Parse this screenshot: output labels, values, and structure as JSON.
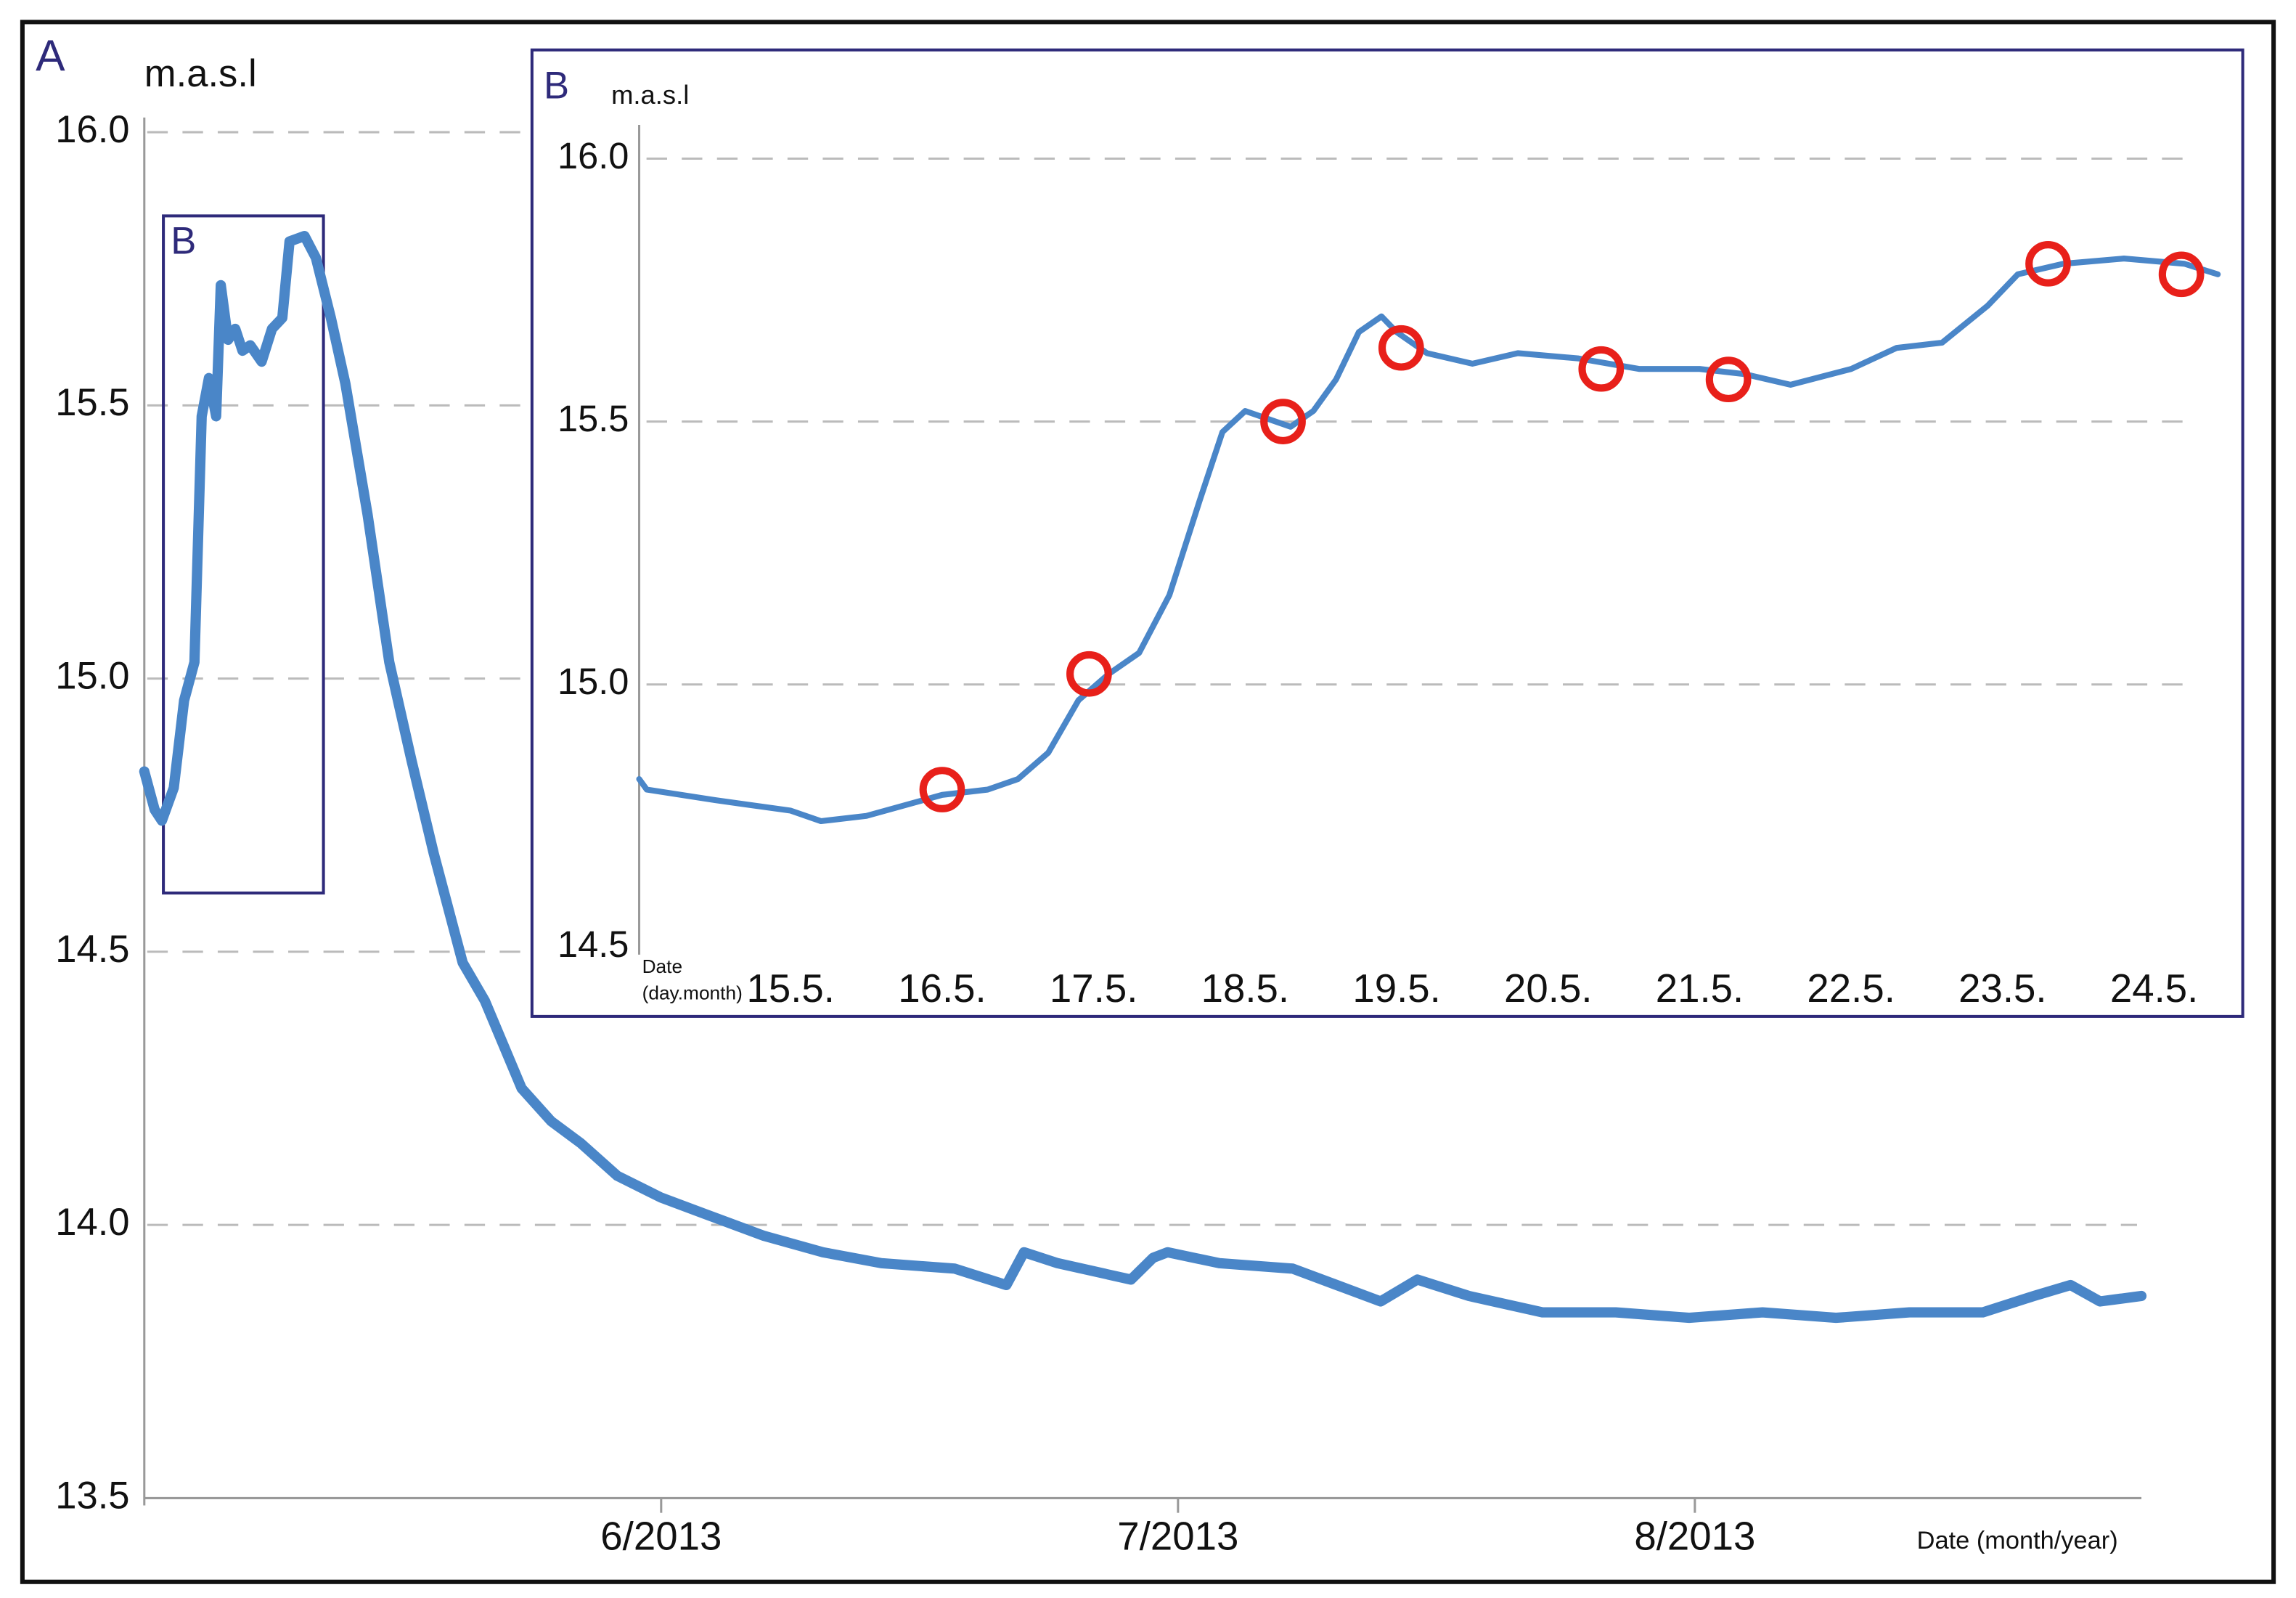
{
  "chart_data": [
    {
      "type": "line",
      "panel_label": "A",
      "y_label": "m.a.s.l",
      "x_label": "Date (month/year)",
      "zoom_label": "B",
      "ylim": [
        13.5,
        16.0
      ],
      "yticks": [
        13.5,
        {
          "value": 14,
          "label": "14.0"
        },
        14.5,
        {
          "value": 15,
          "label": "15.0"
        },
        15.5,
        {
          "value": 16,
          "label": "16.0"
        }
      ],
      "xlim": [
        5.0,
        8.864
      ],
      "xticks": [
        {
          "value": 6,
          "label": "6/2013"
        },
        {
          "value": 7,
          "label": "7/2013"
        },
        {
          "value": 8,
          "label": "8/2013"
        }
      ],
      "grid": true,
      "series": [
        {
          "color": "#4a86c8",
          "x": [
            5.0,
            5.02,
            5.034,
            5.057,
            5.077,
            5.097,
            5.111,
            5.125,
            5.139,
            5.148,
            5.162,
            5.176,
            5.19,
            5.205,
            5.227,
            5.247,
            5.267,
            5.281,
            5.31,
            5.332,
            5.361,
            5.389,
            5.432,
            5.474,
            5.517,
            5.56,
            5.616,
            5.659,
            5.73,
            5.787,
            5.844,
            5.915,
            6.0,
            6.085,
            6.199,
            6.313,
            6.426,
            6.568,
            6.668,
            6.702,
            6.767,
            6.909,
            6.952,
            6.98,
            7.08,
            7.222,
            7.307,
            7.392,
            7.463,
            7.563,
            7.705,
            7.847,
            7.989,
            8.131,
            8.273,
            8.415,
            8.557,
            8.656,
            8.727,
            8.784,
            8.864
          ],
          "values": [
            14.83,
            14.76,
            14.74,
            14.8,
            14.96,
            15.03,
            15.48,
            15.55,
            15.48,
            15.72,
            15.62,
            15.64,
            15.6,
            15.61,
            15.58,
            15.64,
            15.66,
            15.8,
            15.81,
            15.77,
            15.66,
            15.54,
            15.3,
            15.03,
            14.85,
            14.68,
            14.48,
            14.41,
            14.25,
            14.19,
            14.15,
            14.09,
            14.05,
            14.02,
            13.98,
            13.95,
            13.93,
            13.92,
            13.89,
            13.95,
            13.93,
            13.9,
            13.94,
            13.95,
            13.93,
            13.92,
            13.89,
            13.86,
            13.9,
            13.87,
            13.84,
            13.84,
            13.83,
            13.84,
            13.83,
            13.84,
            13.84,
            13.87,
            13.89,
            13.86,
            13.87
          ]
        }
      ]
    },
    {
      "type": "line",
      "panel_label": "B",
      "y_label": "m.a.s.l",
      "x_label": [
        "Date",
        "(day.month)"
      ],
      "ylim": [
        14.5,
        16.0
      ],
      "yticks": [
        14.5,
        {
          "value": 15,
          "label": "15.0"
        },
        15.5,
        {
          "value": 16,
          "label": "16.0"
        }
      ],
      "xlim": [
        14.0,
        24.42
      ],
      "xticks": [
        {
          "value": 15,
          "label": "15.5."
        },
        {
          "value": 16,
          "label": "16.5."
        },
        {
          "value": 17,
          "label": "17.5."
        },
        {
          "value": 18,
          "label": "18.5."
        },
        {
          "value": 19,
          "label": "19.5."
        },
        {
          "value": 20,
          "label": "20.5."
        },
        {
          "value": 21,
          "label": "21.5."
        },
        {
          "value": 22,
          "label": "22.5."
        },
        {
          "value": 23,
          "label": "23.5."
        },
        {
          "value": 24,
          "label": "24.5."
        }
      ],
      "grid": true,
      "series": [
        {
          "color": "#4a86c8",
          "x": [
            14.0,
            14.05,
            14.5,
            15.0,
            15.2,
            15.5,
            16.0,
            16.3,
            16.5,
            16.7,
            16.9,
            17.1,
            17.3,
            17.5,
            17.7,
            17.85,
            18.0,
            18.1,
            18.3,
            18.45,
            18.6,
            18.75,
            18.9,
            19.0,
            19.2,
            19.5,
            19.8,
            20.2,
            20.6,
            21.0,
            21.3,
            21.6,
            22.0,
            22.3,
            22.6,
            22.9,
            23.1,
            23.4,
            23.8,
            24.2,
            24.42
          ],
          "values": [
            14.82,
            14.8,
            14.78,
            14.76,
            14.74,
            14.75,
            14.79,
            14.8,
            14.82,
            14.87,
            14.97,
            15.02,
            15.06,
            15.17,
            15.35,
            15.48,
            15.52,
            15.51,
            15.49,
            15.52,
            15.58,
            15.67,
            15.7,
            15.67,
            15.63,
            15.61,
            15.63,
            15.62,
            15.6,
            15.6,
            15.59,
            15.57,
            15.6,
            15.64,
            15.65,
            15.72,
            15.78,
            15.8,
            15.81,
            15.8,
            15.78
          ]
        }
      ],
      "markers": {
        "type": "scatter",
        "color": "#e8201a",
        "x": [
          16.0,
          16.97,
          18.25,
          19.03,
          20.35,
          21.19,
          23.3,
          24.18
        ],
        "values": [
          14.8,
          15.02,
          15.5,
          15.64,
          15.6,
          15.58,
          15.8,
          15.78
        ]
      }
    }
  ]
}
